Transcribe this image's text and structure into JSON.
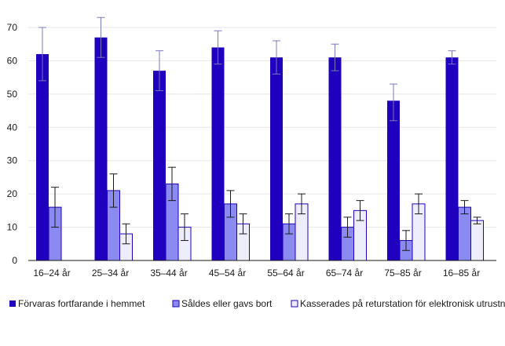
{
  "chart_data": {
    "type": "bar",
    "categories": [
      "16–24 år",
      "25–34 år",
      "35–44 år",
      "45–54 år",
      "55–64 år",
      "65–74 år",
      "75–85 år",
      "16–85 år"
    ],
    "series": [
      {
        "name": "Förvaras fortfarande i hemmet",
        "color": "#1e00be",
        "values": [
          62,
          67,
          57,
          64,
          61,
          61,
          48,
          61
        ],
        "error_low": [
          54,
          61,
          51,
          59,
          56,
          57,
          42,
          59
        ],
        "error_high": [
          70,
          73,
          63,
          69,
          66,
          65,
          53,
          63
        ]
      },
      {
        "name": "Såldes eller gavs bort",
        "color": "#8a8af0",
        "values": [
          16,
          21,
          23,
          17,
          11,
          10,
          6,
          16
        ],
        "error_low": [
          10,
          16,
          18,
          13,
          8,
          7,
          3,
          14
        ],
        "error_high": [
          22,
          26,
          28,
          21,
          14,
          13,
          9,
          18
        ]
      },
      {
        "name": "Kasserades på returstation för elektronisk utrustning",
        "color": "#ededfc",
        "values": [
          null,
          8,
          10,
          11,
          17,
          15,
          17,
          12
        ],
        "error_low": [
          null,
          5,
          6,
          8,
          14,
          12,
          14,
          11
        ],
        "error_high": [
          null,
          11,
          14,
          14,
          20,
          18,
          20,
          13
        ]
      }
    ],
    "ylim": [
      0,
      70
    ],
    "yticks": [
      0,
      10,
      20,
      30,
      40,
      50,
      60,
      70
    ],
    "title": "",
    "xlabel": "",
    "ylabel": "",
    "grid": true,
    "legend_position": "bottom",
    "error_bar_color": "#7a7ab8",
    "error_bar_color_dark": "#1a1a1a"
  }
}
